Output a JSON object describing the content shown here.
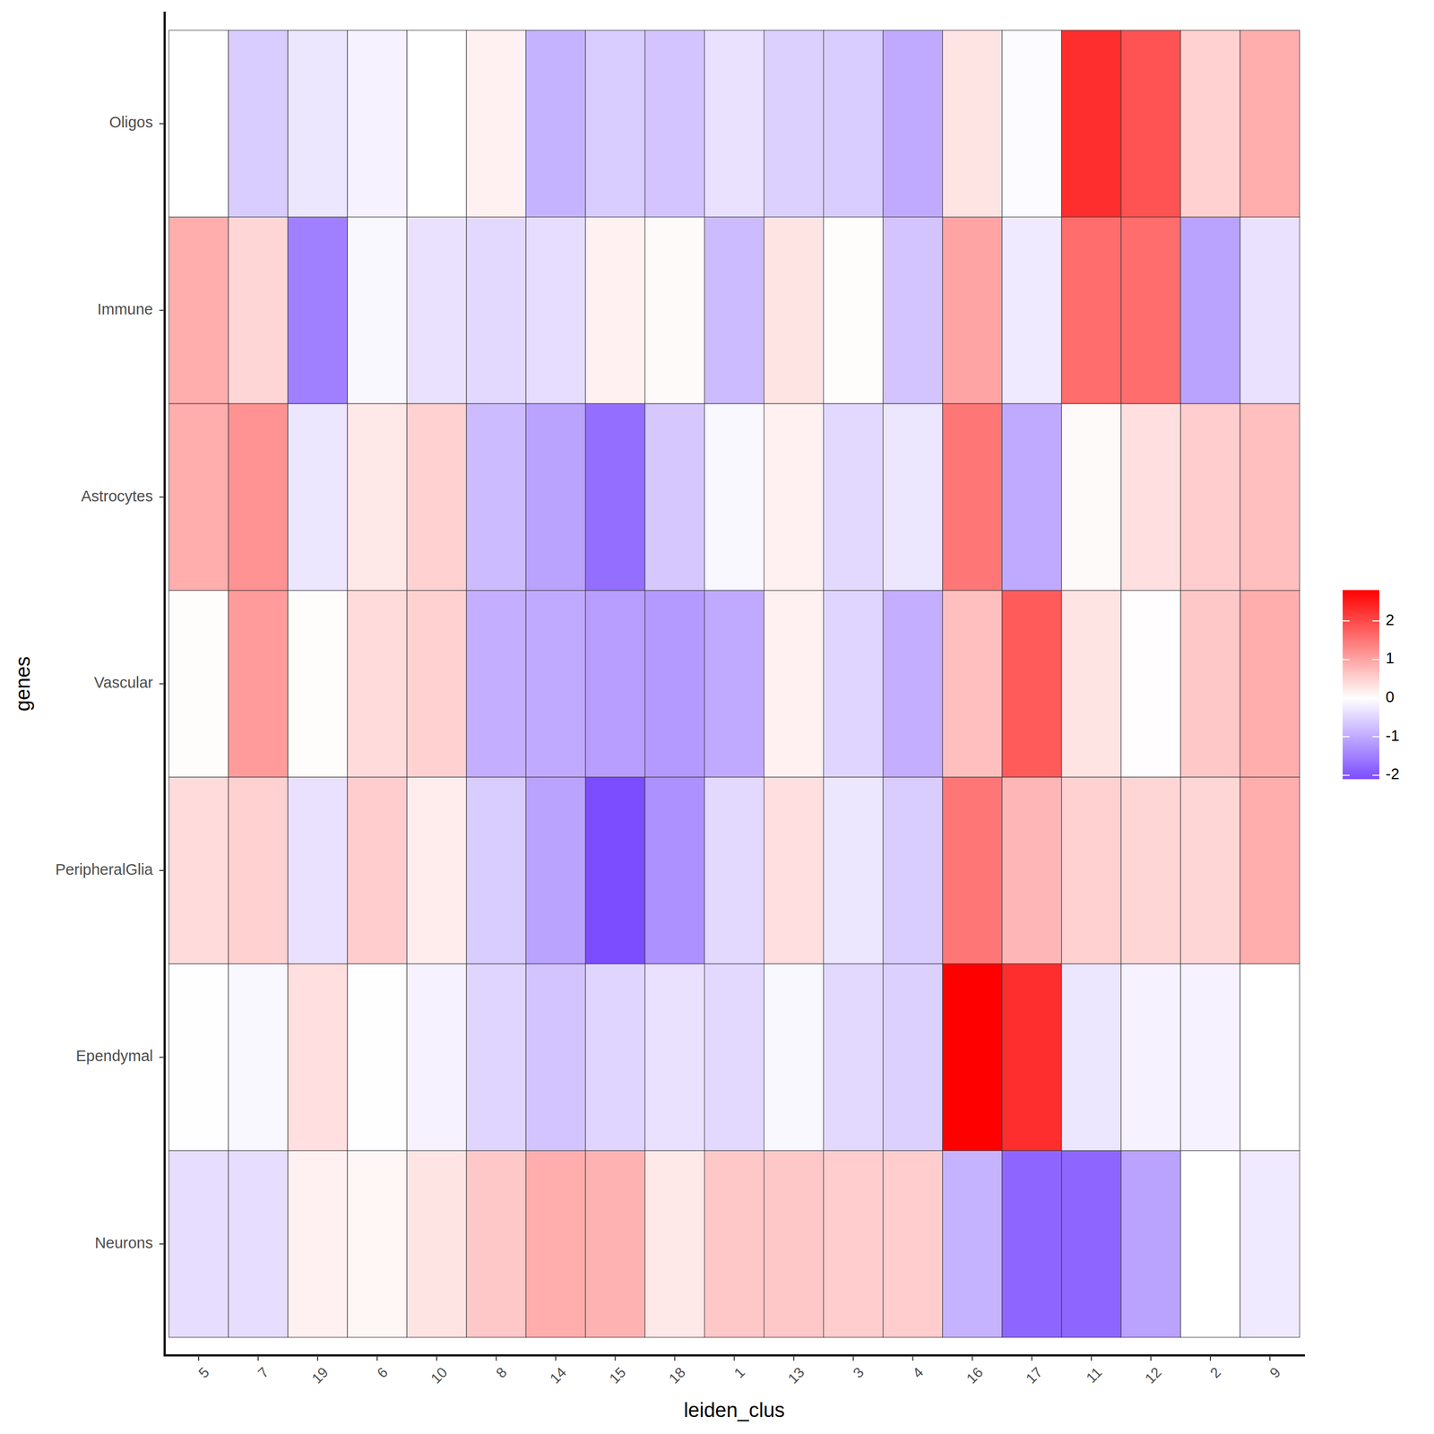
{
  "chart_data": {
    "type": "heatmap",
    "x_label": "leiden_clus",
    "y_label": "genes",
    "categories": [
      "5",
      "7",
      "19",
      "6",
      "10",
      "8",
      "14",
      "15",
      "18",
      "1",
      "13",
      "3",
      "4",
      "16",
      "17",
      "11",
      "12",
      "2",
      "9"
    ],
    "rows": [
      "Oligos",
      "Immune",
      "Astrocytes",
      "Vascular",
      "PeripheralGlia",
      "Ependymal",
      "Neurons"
    ],
    "values": [
      [
        0,
        -0.6,
        -0.3,
        -0.15,
        0,
        0.15,
        -0.9,
        -0.6,
        -0.7,
        -0.35,
        -0.55,
        -0.6,
        -1.0,
        0.3,
        -0.05,
        2.3,
        1.9,
        0.5,
        0.9
      ],
      [
        0.9,
        0.45,
        -1.5,
        -0.1,
        -0.35,
        -0.45,
        -0.4,
        0.15,
        0.05,
        -0.8,
        0.3,
        0.03,
        -0.7,
        1.0,
        -0.25,
        1.6,
        1.6,
        -1.1,
        -0.35
      ],
      [
        0.9,
        1.2,
        -0.3,
        0.25,
        0.5,
        -0.8,
        -1.1,
        -1.7,
        -0.65,
        -0.1,
        0.15,
        -0.45,
        -0.3,
        1.5,
        -1.0,
        0.05,
        0.35,
        0.55,
        0.7
      ],
      [
        0.03,
        1.1,
        0.03,
        0.4,
        0.5,
        -0.95,
        -1.0,
        -1.15,
        -1.2,
        -1.0,
        0.15,
        -0.5,
        -0.95,
        0.7,
        1.8,
        0.3,
        0.02,
        0.6,
        0.9
      ],
      [
        0.4,
        0.5,
        -0.35,
        0.55,
        0.2,
        -0.6,
        -1.1,
        -2.1,
        -1.3,
        -0.45,
        0.35,
        -0.3,
        -0.6,
        1.5,
        0.8,
        0.5,
        0.45,
        0.45,
        0.9
      ],
      [
        -0.02,
        -0.1,
        0.35,
        -0.02,
        -0.15,
        -0.5,
        -0.7,
        -0.5,
        -0.35,
        -0.45,
        -0.1,
        -0.45,
        -0.55,
        2.8,
        2.3,
        -0.3,
        -0.15,
        -0.15,
        0
      ],
      [
        -0.4,
        -0.4,
        0.15,
        0.1,
        0.3,
        0.6,
        0.9,
        0.85,
        0.25,
        0.6,
        0.6,
        0.55,
        0.55,
        -0.9,
        -1.8,
        -1.8,
        -1.1,
        0,
        -0.25
      ]
    ],
    "colors": [
      "#7b4dff",
      "#ffffff",
      "#ff0000"
    ],
    "colorbar": {
      "range": [
        -2.1,
        2.8
      ],
      "ticks": [
        -2,
        -1,
        0,
        1,
        2
      ]
    }
  }
}
